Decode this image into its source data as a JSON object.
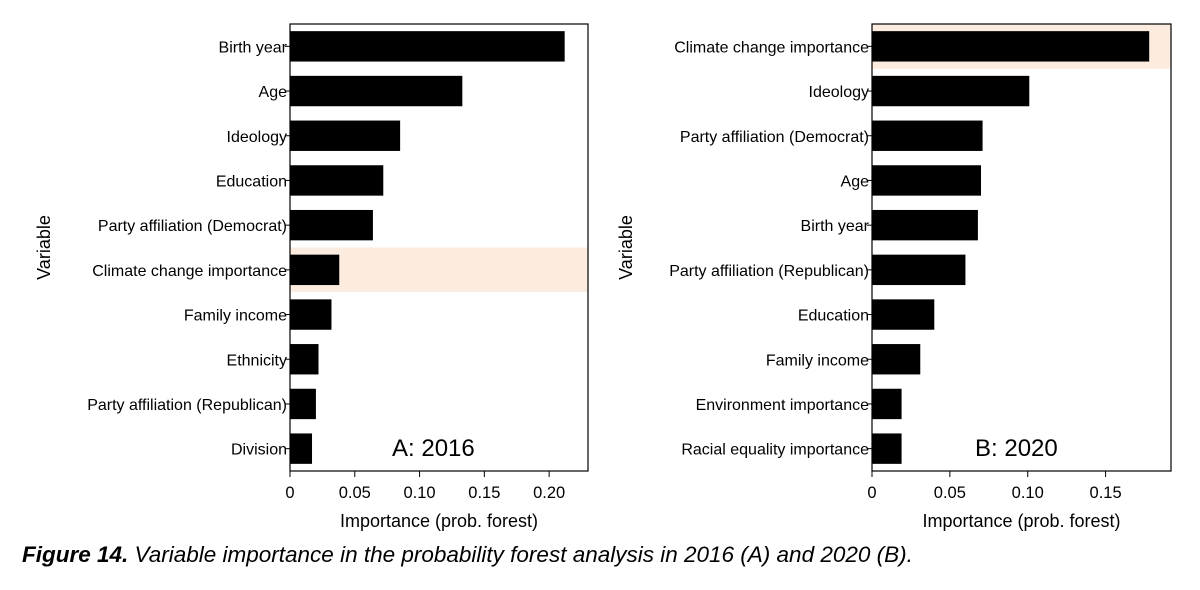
{
  "chart_data": [
    {
      "type": "bar",
      "orientation": "horizontal",
      "annotation": "A: 2016",
      "xlabel": "Importance (prob. forest)",
      "ylabel": "Variable",
      "xlim": [
        0,
        0.23
      ],
      "xticks": [
        0,
        0.05,
        0.1,
        0.15,
        0.2
      ],
      "xtick_labels": [
        "0",
        "0.05",
        "0.10",
        "0.15",
        "0.20"
      ],
      "categories": [
        "Birth year",
        "Age",
        "Ideology",
        "Education",
        "Party affiliation (Democrat)",
        "Climate change importance",
        "Family income",
        "Ethnicity",
        "Party affiliation (Republican)",
        "Division"
      ],
      "values": [
        0.212,
        0.133,
        0.085,
        0.072,
        0.064,
        0.038,
        0.032,
        0.022,
        0.02,
        0.017
      ],
      "highlight": "Climate change importance",
      "highlight_color": "#fcebdf",
      "bar_color": "#000000",
      "grid": false
    },
    {
      "type": "bar",
      "orientation": "horizontal",
      "annotation": "B: 2020",
      "xlabel": "Importance (prob. forest)",
      "ylabel": "Variable",
      "xlim": [
        0,
        0.192
      ],
      "xticks": [
        0,
        0.05,
        0.1,
        0.15
      ],
      "xtick_labels": [
        "0",
        "0.05",
        "0.10",
        "0.15"
      ],
      "categories": [
        "Climate change importance",
        "Ideology",
        "Party affiliation (Democrat)",
        "Age",
        "Birth year",
        "Party affiliation (Republican)",
        "Education",
        "Family income",
        "Environment importance",
        "Racial equality importance"
      ],
      "values": [
        0.178,
        0.101,
        0.071,
        0.07,
        0.068,
        0.06,
        0.04,
        0.031,
        0.019,
        0.019
      ],
      "highlight": "Climate change importance",
      "highlight_color": "#fcebdf",
      "bar_color": "#000000",
      "grid": false
    }
  ],
  "caption": {
    "label": "Figure 14.",
    "text": " Variable importance in the probability forest analysis in 2016 (A) and 2020 (B)."
  }
}
